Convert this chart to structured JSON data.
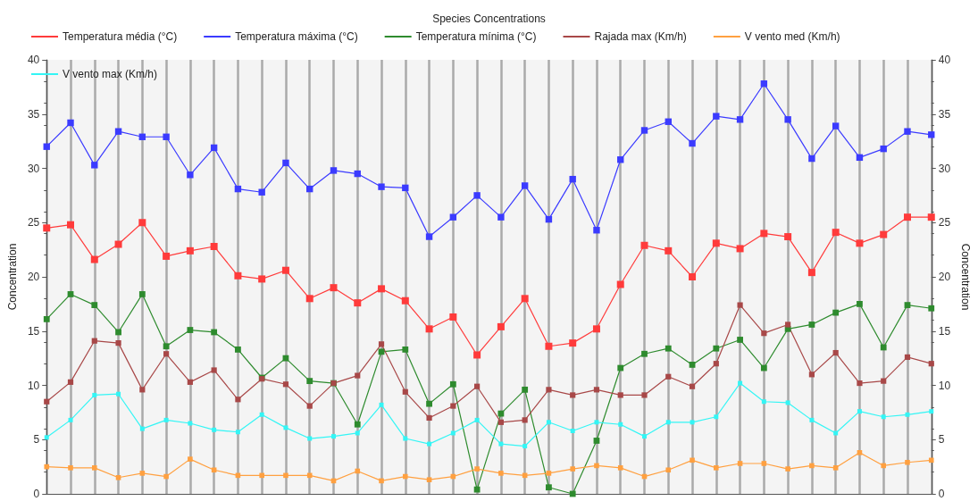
{
  "chart_data": {
    "type": "line",
    "title": "Species Concentrations",
    "ylabel": "Concentration",
    "y2label": "Concentration",
    "categories": [
      null,
      null,
      null,
      null,
      null,
      null,
      null,
      null,
      null,
      null,
      null,
      null,
      null,
      null,
      null,
      null,
      null,
      null,
      null,
      null,
      null,
      null,
      null,
      null,
      null,
      null,
      null,
      null,
      null,
      null,
      null,
      null,
      null,
      null,
      null,
      null,
      null,
      null
    ],
    "series": [
      {
        "name": "Temperatura média (°C)",
        "color": "#ff3b3b",
        "values": [
          24.5,
          24.8,
          21.6,
          23.0,
          25.0,
          21.9,
          22.4,
          22.8,
          20.1,
          19.8,
          20.6,
          18.0,
          19.0,
          17.6,
          18.9,
          17.8,
          15.2,
          16.3,
          12.8,
          15.4,
          18.0,
          13.6,
          13.9,
          15.2,
          19.3,
          22.9,
          22.4,
          20.0,
          23.1,
          22.6,
          24.0,
          23.7,
          20.4,
          24.1,
          23.1,
          23.9,
          25.5,
          25.5
        ]
      },
      {
        "name": "Temperatura máxima (°C)",
        "color": "#3b3bff",
        "values": [
          32.0,
          34.2,
          30.3,
          33.4,
          32.9,
          32.9,
          29.4,
          31.9,
          28.1,
          27.8,
          30.5,
          28.1,
          29.8,
          29.5,
          28.3,
          28.2,
          23.7,
          25.5,
          27.5,
          25.5,
          28.4,
          25.3,
          29.0,
          24.3,
          30.8,
          33.5,
          34.3,
          32.3,
          34.8,
          34.5,
          37.8,
          34.5,
          30.9,
          33.9,
          31.0,
          31.8,
          33.4,
          33.1
        ]
      },
      {
        "name": "Temperatura mínima (°C)",
        "color": "#2e8b2e",
        "values": [
          16.1,
          18.4,
          17.4,
          14.9,
          18.4,
          13.6,
          15.1,
          14.9,
          13.3,
          10.7,
          12.5,
          10.4,
          10.2,
          6.4,
          13.1,
          13.3,
          8.3,
          10.1,
          0.4,
          7.4,
          9.6,
          0.6,
          0.0,
          4.9,
          11.6,
          12.9,
          13.4,
          11.9,
          13.4,
          14.2,
          11.6,
          15.2,
          15.6,
          16.7,
          17.5,
          13.5,
          17.4,
          17.1
        ]
      },
      {
        "name": "Rajada max (Km/h)",
        "color": "#a84848",
        "values": [
          8.5,
          10.3,
          14.1,
          13.9,
          9.6,
          12.9,
          10.3,
          11.4,
          8.7,
          10.6,
          10.1,
          8.1,
          10.2,
          10.9,
          13.8,
          9.4,
          7.0,
          8.1,
          9.9,
          6.6,
          6.8,
          9.6,
          9.1,
          9.6,
          9.1,
          9.1,
          10.8,
          9.9,
          12.0,
          17.4,
          14.8,
          15.6,
          11.0,
          13.0,
          10.2,
          10.4,
          12.6,
          12.0
        ]
      },
      {
        "name": "V vento med (Km/h)",
        "color": "#ffa040",
        "values": [
          2.5,
          2.4,
          2.4,
          1.5,
          1.9,
          1.6,
          3.2,
          2.2,
          1.7,
          1.7,
          1.7,
          1.7,
          1.2,
          2.1,
          1.2,
          1.6,
          1.3,
          1.6,
          2.3,
          1.9,
          1.7,
          1.9,
          2.3,
          2.6,
          2.4,
          1.6,
          2.2,
          3.1,
          2.4,
          2.8,
          2.8,
          2.3,
          2.6,
          2.4,
          3.8,
          2.6,
          2.9,
          3.1
        ]
      },
      {
        "name": "V vento max (Km/h)",
        "color": "#33f5f5",
        "values": [
          5.2,
          6.8,
          9.1,
          9.2,
          6.0,
          6.8,
          6.5,
          5.9,
          5.7,
          7.3,
          6.1,
          5.1,
          5.3,
          5.6,
          8.2,
          5.1,
          4.6,
          5.6,
          6.8,
          4.6,
          4.4,
          6.6,
          5.8,
          6.6,
          6.4,
          5.3,
          6.6,
          6.6,
          7.1,
          10.2,
          8.5,
          8.4,
          6.8,
          5.6,
          7.6,
          7.1,
          7.3,
          7.6
        ]
      }
    ],
    "ylim": [
      0,
      40
    ],
    "yticks": [
      0,
      5,
      10,
      15,
      20,
      25,
      30,
      35,
      40
    ],
    "y2lim": [
      0,
      40
    ],
    "y2ticks": [
      0,
      5,
      10,
      15,
      20,
      25,
      30,
      35,
      40
    ],
    "grid": "x",
    "legend": "top",
    "marker": "square",
    "line_style": "solid"
  }
}
